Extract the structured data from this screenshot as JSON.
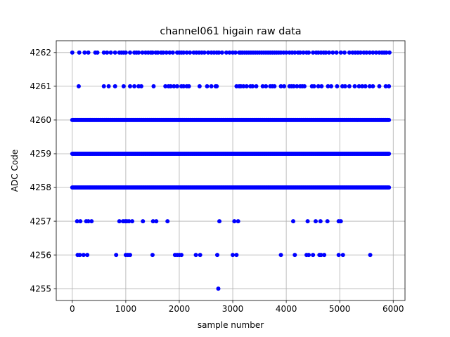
{
  "chart_data": {
    "type": "scatter",
    "title": "channel061 higain raw data",
    "xlabel": "sample number",
    "ylabel": "ADC Code",
    "xlim": [
      -300,
      6220
    ],
    "ylim": [
      4254.65,
      4262.35
    ],
    "xticks": [
      0,
      1000,
      2000,
      3000,
      4000,
      5000,
      6000
    ],
    "yticks": [
      4255,
      4256,
      4257,
      4258,
      4259,
      4260,
      4261,
      4262
    ],
    "grid": true,
    "marker_color": "#0000ff",
    "series": [
      {
        "rows": [
          {
            "y": 4262,
            "x": [
              0,
              130,
              230,
              300,
              430,
              470,
              590,
              650,
              720,
              800,
              880,
              920,
              960,
              1000,
              1080,
              1160,
              1200,
              1240,
              1310,
              1370,
              1420,
              1470,
              1500,
              1560,
              1600,
              1660,
              1700,
              1760,
              1820,
              1880,
              1960,
              2000,
              2040,
              2080,
              2140,
              2200,
              2270,
              2320,
              2370,
              2420,
              2470,
              2540,
              2600,
              2650,
              2700,
              2740,
              2800,
              2880,
              2940,
              3000,
              3050,
              3120,
              3150,
              3180,
              3220,
              3260,
              3300,
              3340,
              3380,
              3420,
              3460,
              3500,
              3540,
              3580,
              3620,
              3660,
              3700,
              3740,
              3780,
              3820,
              3860,
              3900,
              3950,
              4000,
              4060,
              4110,
              4160,
              4220,
              4260,
              4320,
              4380,
              4420,
              4500,
              4560,
              4600,
              4650,
              4700,
              4740,
              4800,
              4870,
              4940,
              5020,
              5090,
              5180,
              5240,
              5290,
              5340,
              5390,
              5450,
              5500,
              5560,
              5620,
              5680,
              5740,
              5790,
              5830,
              5870,
              5930
            ]
          },
          {
            "y": 4261,
            "x": [
              120,
              590,
              680,
              800,
              960,
              1080,
              1160,
              1240,
              1290,
              1520,
              1740,
              1800,
              1840,
              1900,
              1960,
              2040,
              2080,
              2140,
              2180,
              2380,
              2520,
              2600,
              2680,
              2700,
              3070,
              3120,
              3150,
              3200,
              3260,
              3330,
              3370,
              3440,
              3560,
              3620,
              3700,
              3740,
              3780,
              3900,
              3960,
              4060,
              4100,
              4140,
              4200,
              4260,
              4300,
              4340,
              4480,
              4520,
              4600,
              4660,
              4780,
              4840,
              4950,
              5050,
              5100,
              5180,
              5280,
              5360,
              5420,
              5480,
              5560,
              5620,
              5740,
              5860,
              5920
            ]
          },
          {
            "y": 4260,
            "step": 20,
            "from": 0,
            "to": 5920
          },
          {
            "y": 4259,
            "step": 20,
            "from": 0,
            "to": 5920
          },
          {
            "y": 4258,
            "step": 20,
            "from": 0,
            "to": 5920
          },
          {
            "y": 4257,
            "x": [
              90,
              150,
              260,
              300,
              360,
              880,
              950,
              990,
              1020,
              1060,
              1120,
              1320,
              1510,
              1570,
              1780,
              2750,
              3030,
              3100,
              4130,
              4400,
              4550,
              4640,
              4770,
              4980,
              5020
            ]
          },
          {
            "y": 4256,
            "x": [
              100,
              140,
              210,
              280,
              820,
              1000,
              1040,
              1080,
              1500,
              1920,
              1960,
              2000,
              2040,
              2310,
              2390,
              2710,
              3000,
              3070,
              3900,
              4160,
              4380,
              4420,
              4500,
              4620,
              4650,
              4710,
              4980,
              5060,
              5570
            ]
          },
          {
            "y": 4255,
            "x": [
              2730
            ]
          }
        ]
      }
    ]
  }
}
